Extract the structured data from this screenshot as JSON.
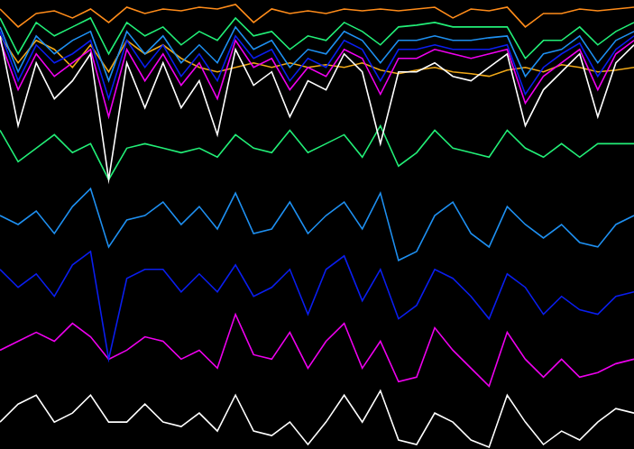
{
  "chart_data": {
    "type": "line",
    "x": [
      0,
      20,
      40,
      60,
      80,
      100,
      120,
      140,
      160,
      180,
      200,
      220,
      240,
      260,
      280,
      300,
      320,
      340,
      360,
      380,
      400,
      420,
      440,
      460,
      480,
      500,
      520,
      540,
      560,
      580,
      600,
      620,
      640,
      660,
      680,
      700
    ],
    "xlim": [
      0,
      700
    ],
    "ylim": [
      0,
      500
    ],
    "tick_labels": false,
    "grid": false,
    "series": [
      {
        "color": "#ffffff",
        "values": [
          460,
          360,
          430,
          390,
          410,
          440,
          300,
          430,
          380,
          430,
          380,
          410,
          350,
          445,
          405,
          420,
          370,
          410,
          400,
          440,
          420,
          340,
          420,
          420,
          430,
          415,
          410,
          425,
          440,
          360,
          400,
          420,
          440,
          370,
          430,
          450
        ]
      },
      {
        "color": "#ee00ee",
        "values": [
          455,
          400,
          440,
          415,
          430,
          445,
          370,
          445,
          410,
          440,
          405,
          430,
          390,
          455,
          425,
          435,
          400,
          425,
          415,
          445,
          435,
          395,
          435,
          435,
          445,
          440,
          435,
          440,
          445,
          385,
          415,
          430,
          445,
          400,
          440,
          455
        ]
      },
      {
        "color": "#0a1eee",
        "values": [
          465,
          410,
          450,
          430,
          440,
          455,
          390,
          455,
          425,
          450,
          415,
          440,
          410,
          460,
          435,
          445,
          410,
          435,
          425,
          455,
          445,
          410,
          445,
          445,
          450,
          445,
          445,
          445,
          450,
          395,
          425,
          440,
          452,
          415,
          445,
          460
        ]
      },
      {
        "color": "#1e8ff0",
        "values": [
          470,
          420,
          460,
          440,
          455,
          465,
          410,
          465,
          440,
          460,
          430,
          450,
          430,
          470,
          445,
          455,
          425,
          445,
          440,
          465,
          455,
          430,
          455,
          455,
          460,
          455,
          455,
          458,
          460,
          415,
          440,
          445,
          460,
          430,
          455,
          465
        ]
      },
      {
        "color": "#22ee77",
        "values": [
          480,
          440,
          475,
          460,
          470,
          480,
          440,
          475,
          460,
          470,
          450,
          465,
          455,
          480,
          460,
          465,
          445,
          460,
          455,
          475,
          465,
          450,
          470,
          472,
          475,
          470,
          470,
          470,
          470,
          435,
          455,
          455,
          470,
          450,
          465,
          475
        ]
      },
      {
        "color": "#f0a818",
        "values": [
          460,
          430,
          455,
          445,
          425,
          450,
          420,
          455,
          440,
          450,
          435,
          425,
          420,
          425,
          430,
          425,
          430,
          425,
          428,
          425,
          430,
          422,
          418,
          422,
          425,
          420,
          418,
          415,
          422,
          425,
          420,
          428,
          425,
          420,
          422,
          425
        ]
      },
      {
        "color": "#ff8c1a",
        "values": [
          490,
          470,
          485,
          488,
          480,
          490,
          475,
          492,
          485,
          490,
          488,
          492,
          490,
          495,
          475,
          490,
          485,
          488,
          485,
          490,
          488,
          490,
          488,
          490,
          492,
          480,
          490,
          488,
          492,
          470,
          485,
          485,
          490,
          488,
          490,
          492
        ]
      },
      {
        "color": "#22ee77",
        "values": [
          355,
          320,
          335,
          350,
          330,
          340,
          300,
          335,
          340,
          335,
          330,
          335,
          325,
          350,
          335,
          330,
          355,
          330,
          340,
          350,
          325,
          360,
          315,
          330,
          355,
          335,
          330,
          325,
          355,
          335,
          325,
          340,
          325,
          340,
          340,
          340
        ]
      },
      {
        "color": "#1e8ff0",
        "values": [
          260,
          250,
          265,
          240,
          270,
          290,
          225,
          255,
          260,
          275,
          250,
          270,
          245,
          285,
          240,
          245,
          275,
          240,
          260,
          275,
          245,
          285,
          210,
          220,
          260,
          275,
          240,
          225,
          270,
          250,
          235,
          250,
          230,
          225,
          250,
          260
        ]
      },
      {
        "color": "#0a1eee",
        "values": [
          200,
          180,
          195,
          170,
          205,
          220,
          100,
          190,
          200,
          200,
          175,
          195,
          175,
          205,
          170,
          180,
          200,
          150,
          200,
          215,
          165,
          200,
          145,
          160,
          200,
          190,
          170,
          145,
          195,
          180,
          150,
          170,
          155,
          150,
          170,
          175
        ]
      },
      {
        "color": "#ee00ee",
        "values": [
          110,
          120,
          130,
          120,
          140,
          125,
          100,
          110,
          125,
          120,
          100,
          110,
          90,
          150,
          105,
          100,
          130,
          90,
          120,
          140,
          90,
          120,
          75,
          80,
          135,
          110,
          90,
          70,
          130,
          100,
          80,
          100,
          80,
          85,
          95,
          100
        ]
      },
      {
        "color": "#ffffff",
        "values": [
          30,
          50,
          60,
          30,
          40,
          60,
          30,
          30,
          50,
          30,
          25,
          40,
          20,
          60,
          20,
          15,
          30,
          5,
          30,
          60,
          30,
          65,
          10,
          5,
          40,
          30,
          10,
          2,
          60,
          30,
          5,
          20,
          10,
          30,
          45,
          40
        ]
      }
    ]
  }
}
